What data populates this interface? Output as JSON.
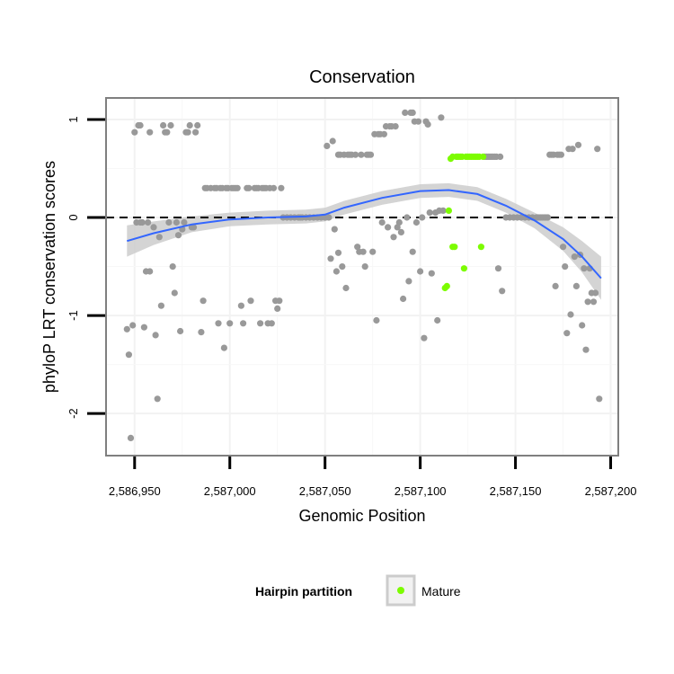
{
  "chart_data": {
    "type": "scatter",
    "title": "Conservation",
    "xlabel": "Genomic Position",
    "ylabel": "phyloP LRT conservation scores",
    "xlim": [
      2586935,
      2587204
    ],
    "ylim": [
      -2.43,
      1.22
    ],
    "x_ticks": [
      {
        "value": 2586950,
        "label": "2,586,950"
      },
      {
        "value": 2587000,
        "label": "2,587,000"
      },
      {
        "value": 2587050,
        "label": "2,587,050"
      },
      {
        "value": 2587100,
        "label": "2,587,100"
      },
      {
        "value": 2587150,
        "label": "2,587,150"
      },
      {
        "value": 2587200,
        "label": "2,587,200"
      }
    ],
    "y_ticks": [
      {
        "value": -2,
        "label": "-2"
      },
      {
        "value": -1,
        "label": "-1"
      },
      {
        "value": 0,
        "label": "0"
      },
      {
        "value": 1,
        "label": "1"
      }
    ],
    "reference_line": {
      "y": 0,
      "style": "dashed"
    },
    "grid": true,
    "legend": {
      "title": "Hairpin partition",
      "position": "bottom",
      "items": [
        {
          "label": "Mature",
          "color": "#7CFC00"
        }
      ]
    },
    "colors": {
      "other": "#999999",
      "mature": "#7CFC00",
      "smooth": "#3366FF",
      "band": "#cccccc"
    },
    "series": [
      {
        "name": "",
        "color": "#999999",
        "points": [
          [
            2586946,
            -1.14
          ],
          [
            2586947,
            -1.4
          ],
          [
            2586948,
            -2.25
          ],
          [
            2586949,
            -1.1
          ],
          [
            2586950,
            0.87
          ],
          [
            2586951,
            -0.05
          ],
          [
            2586952,
            0.94
          ],
          [
            2586953,
            0.94
          ],
          [
            2586953,
            -0.05
          ],
          [
            2586954,
            -0.05
          ],
          [
            2586955,
            -1.12
          ],
          [
            2586956,
            -0.55
          ],
          [
            2586957,
            -0.05
          ],
          [
            2586958,
            0.87
          ],
          [
            2586958,
            -0.55
          ],
          [
            2586960,
            -0.1
          ],
          [
            2586961,
            -1.2
          ],
          [
            2586962,
            -1.85
          ],
          [
            2586963,
            -0.2
          ],
          [
            2586964,
            -0.9
          ],
          [
            2586965,
            0.94
          ],
          [
            2586966,
            0.87
          ],
          [
            2586967,
            0.87
          ],
          [
            2586968,
            -0.05
          ],
          [
            2586969,
            0.94
          ],
          [
            2586970,
            -0.5
          ],
          [
            2586971,
            -0.77
          ],
          [
            2586972,
            -0.05
          ],
          [
            2586973,
            -0.18
          ],
          [
            2586974,
            -1.16
          ],
          [
            2586975,
            -0.12
          ],
          [
            2586976,
            -0.05
          ],
          [
            2586977,
            0.87
          ],
          [
            2586978,
            0.87
          ],
          [
            2586979,
            0.94
          ],
          [
            2586980,
            -0.1
          ],
          [
            2586981,
            -0.1
          ],
          [
            2586982,
            0.87
          ],
          [
            2586983,
            0.94
          ],
          [
            2586985,
            -1.17
          ],
          [
            2586986,
            -0.85
          ],
          [
            2586987,
            0.3
          ],
          [
            2586988,
            0.3
          ],
          [
            2586990,
            0.3
          ],
          [
            2586992,
            0.3
          ],
          [
            2586993,
            0.3
          ],
          [
            2586994,
            -1.08
          ],
          [
            2586995,
            0.3
          ],
          [
            2586996,
            0.3
          ],
          [
            2586997,
            -1.33
          ],
          [
            2586998,
            0.3
          ],
          [
            2586999,
            0.3
          ],
          [
            2587000,
            -1.08
          ],
          [
            2587001,
            0.3
          ],
          [
            2587002,
            0.3
          ],
          [
            2587003,
            0.3
          ],
          [
            2587004,
            0.3
          ],
          [
            2587006,
            -0.9
          ],
          [
            2587007,
            -1.08
          ],
          [
            2587009,
            0.3
          ],
          [
            2587010,
            0.3
          ],
          [
            2587011,
            -0.85
          ],
          [
            2587013,
            0.3
          ],
          [
            2587014,
            0.3
          ],
          [
            2587015,
            0.3
          ],
          [
            2587016,
            -1.08
          ],
          [
            2587017,
            0.3
          ],
          [
            2587018,
            0.3
          ],
          [
            2587019,
            0.3
          ],
          [
            2587020,
            -1.08
          ],
          [
            2587021,
            0.3
          ],
          [
            2587022,
            -1.08
          ],
          [
            2587023,
            0.3
          ],
          [
            2587024,
            -0.85
          ],
          [
            2587025,
            -0.93
          ],
          [
            2587026,
            -0.85
          ],
          [
            2587027,
            0.3
          ],
          [
            2587028,
            0.0
          ],
          [
            2587030,
            0.0
          ],
          [
            2587032,
            0.0
          ],
          [
            2587034,
            0.0
          ],
          [
            2587036,
            0.0
          ],
          [
            2587037,
            0.0
          ],
          [
            2587038,
            0.0
          ],
          [
            2587040,
            0.0
          ],
          [
            2587042,
            0.0
          ],
          [
            2587044,
            0.0
          ],
          [
            2587046,
            0.0
          ],
          [
            2587048,
            0.0
          ],
          [
            2587050,
            0.0
          ],
          [
            2587051,
            0.73
          ],
          [
            2587052,
            0.0
          ],
          [
            2587053,
            -0.42
          ],
          [
            2587054,
            0.78
          ],
          [
            2587055,
            -0.12
          ],
          [
            2587056,
            -0.55
          ],
          [
            2587057,
            -0.36
          ],
          [
            2587057,
            0.64
          ],
          [
            2587058,
            0.64
          ],
          [
            2587059,
            -0.5
          ],
          [
            2587060,
            0.64
          ],
          [
            2587061,
            -0.72
          ],
          [
            2587062,
            0.64
          ],
          [
            2587063,
            0.64
          ],
          [
            2587064,
            0.64
          ],
          [
            2587066,
            0.64
          ],
          [
            2587067,
            -0.3
          ],
          [
            2587068,
            -0.35
          ],
          [
            2587069,
            0.64
          ],
          [
            2587070,
            -0.35
          ],
          [
            2587071,
            -0.5
          ],
          [
            2587072,
            0.64
          ],
          [
            2587073,
            0.64
          ],
          [
            2587074,
            0.64
          ],
          [
            2587075,
            -0.35
          ],
          [
            2587076,
            0.85
          ],
          [
            2587077,
            -1.05
          ],
          [
            2587078,
            0.85
          ],
          [
            2587079,
            0.85
          ],
          [
            2587080,
            -0.05
          ],
          [
            2587081,
            0.85
          ],
          [
            2587082,
            0.93
          ],
          [
            2587083,
            -0.1
          ],
          [
            2587084,
            0.93
          ],
          [
            2587085,
            0.93
          ],
          [
            2587086,
            -0.2
          ],
          [
            2587087,
            0.93
          ],
          [
            2587088,
            -0.1
          ],
          [
            2587089,
            -0.05
          ],
          [
            2587090,
            -0.15
          ],
          [
            2587091,
            -0.83
          ],
          [
            2587092,
            1.07
          ],
          [
            2587093,
            0.0
          ],
          [
            2587094,
            -0.65
          ],
          [
            2587095,
            1.07
          ],
          [
            2587096,
            -0.35
          ],
          [
            2587096,
            1.07
          ],
          [
            2587097,
            0.98
          ],
          [
            2587098,
            -0.05
          ],
          [
            2587099,
            0.98
          ],
          [
            2587100,
            -0.55
          ],
          [
            2587101,
            0.0
          ],
          [
            2587102,
            -1.23
          ],
          [
            2587103,
            0.98
          ],
          [
            2587104,
            0.95
          ],
          [
            2587105,
            0.05
          ],
          [
            2587106,
            -0.57
          ],
          [
            2587108,
            0.05
          ],
          [
            2587109,
            -1.05
          ],
          [
            2587110,
            0.07
          ],
          [
            2587111,
            1.02
          ],
          [
            2587112,
            0.07
          ],
          [
            2587134,
            0.62
          ],
          [
            2587135,
            0.62
          ],
          [
            2587136,
            0.62
          ],
          [
            2587137,
            0.62
          ],
          [
            2587138,
            0.62
          ],
          [
            2587139,
            0.62
          ],
          [
            2587140,
            0.62
          ],
          [
            2587141,
            -0.52
          ],
          [
            2587142,
            0.62
          ],
          [
            2587143,
            -0.75
          ],
          [
            2587145,
            0.0
          ],
          [
            2587147,
            0.0
          ],
          [
            2587149,
            0.0
          ],
          [
            2587151,
            0.0
          ],
          [
            2587153,
            0.0
          ],
          [
            2587155,
            0.0
          ],
          [
            2587157,
            0.0
          ],
          [
            2587159,
            0.0
          ],
          [
            2587161,
            0.0
          ],
          [
            2587162,
            0.0
          ],
          [
            2587163,
            0.0
          ],
          [
            2587164,
            0.0
          ],
          [
            2587165,
            0.0
          ],
          [
            2587166,
            0.0
          ],
          [
            2587167,
            0.0
          ],
          [
            2587168,
            0.64
          ],
          [
            2587169,
            0.64
          ],
          [
            2587170,
            0.64
          ],
          [
            2587171,
            -0.7
          ],
          [
            2587172,
            0.64
          ],
          [
            2587173,
            0.64
          ],
          [
            2587174,
            0.64
          ],
          [
            2587175,
            -0.3
          ],
          [
            2587176,
            -0.5
          ],
          [
            2587177,
            -1.18
          ],
          [
            2587178,
            0.7
          ],
          [
            2587179,
            -0.99
          ],
          [
            2587180,
            0.7
          ],
          [
            2587181,
            -0.4
          ],
          [
            2587182,
            -0.7
          ],
          [
            2587183,
            0.74
          ],
          [
            2587184,
            -0.38
          ],
          [
            2587185,
            -1.1
          ],
          [
            2587186,
            -0.52
          ],
          [
            2587187,
            -1.35
          ],
          [
            2587188,
            -0.86
          ],
          [
            2587189,
            -0.52
          ],
          [
            2587190,
            -0.77
          ],
          [
            2587191,
            -0.86
          ],
          [
            2587192,
            -0.77
          ],
          [
            2587193,
            0.7
          ],
          [
            2587194,
            -1.85
          ]
        ]
      },
      {
        "name": "Mature",
        "color": "#7CFC00",
        "points": [
          [
            2587113,
            -0.72
          ],
          [
            2587114,
            -0.7
          ],
          [
            2587115,
            0.07
          ],
          [
            2587116,
            0.6
          ],
          [
            2587117,
            -0.3
          ],
          [
            2587117,
            0.62
          ],
          [
            2587118,
            -0.3
          ],
          [
            2587119,
            0.62
          ],
          [
            2587120,
            0.62
          ],
          [
            2587121,
            0.62
          ],
          [
            2587122,
            0.62
          ],
          [
            2587123,
            -0.52
          ],
          [
            2587124,
            0.62
          ],
          [
            2587125,
            0.62
          ],
          [
            2587126,
            0.62
          ],
          [
            2587127,
            0.62
          ],
          [
            2587128,
            0.62
          ],
          [
            2587129,
            0.62
          ],
          [
            2587130,
            0.62
          ],
          [
            2587131,
            0.62
          ],
          [
            2587132,
            -0.3
          ],
          [
            2587133,
            0.62
          ]
        ]
      }
    ],
    "smooth": {
      "name": "",
      "x": [
        2586946,
        2586960,
        2586980,
        2587000,
        2587020,
        2587040,
        2587050,
        2587060,
        2587080,
        2587100,
        2587115,
        2587130,
        2587145,
        2587160,
        2587175,
        2587185,
        2587195
      ],
      "y": [
        -0.24,
        -0.16,
        -0.07,
        -0.02,
        0.0,
        0.01,
        0.03,
        0.1,
        0.2,
        0.27,
        0.28,
        0.24,
        0.12,
        -0.03,
        -0.22,
        -0.4,
        -0.62
      ],
      "se": [
        0.16,
        0.12,
        0.08,
        0.07,
        0.07,
        0.07,
        0.07,
        0.07,
        0.07,
        0.07,
        0.07,
        0.07,
        0.07,
        0.08,
        0.12,
        0.16,
        0.22
      ]
    }
  }
}
